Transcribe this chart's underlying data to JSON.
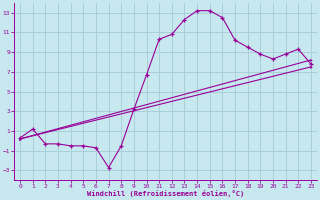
{
  "background_color": "#c6e8ee",
  "grid_color": "#aacfd8",
  "line_color": "#990099",
  "xlim": [
    -0.5,
    23.5
  ],
  "ylim": [
    -4,
    14
  ],
  "xticks": [
    0,
    1,
    2,
    3,
    4,
    5,
    6,
    7,
    8,
    9,
    10,
    11,
    12,
    13,
    14,
    15,
    16,
    17,
    18,
    19,
    20,
    21,
    22,
    23
  ],
  "yticks": [
    -3,
    -1,
    1,
    3,
    5,
    7,
    9,
    11,
    13
  ],
  "xlabel": "Windchill (Refroidissement éolien,°C)",
  "line1_x": [
    0,
    1,
    2,
    3,
    4,
    5,
    6,
    7,
    8,
    9,
    10,
    11,
    12,
    13,
    14,
    15,
    16,
    17,
    18,
    19,
    20,
    21,
    22,
    23
  ],
  "line1_y": [
    0.3,
    1.2,
    -0.3,
    -0.3,
    -0.5,
    -0.5,
    -0.7,
    -2.7,
    -0.5,
    3.2,
    6.7,
    10.3,
    10.8,
    12.3,
    13.2,
    13.2,
    12.5,
    10.2,
    9.5,
    8.8,
    8.3,
    8.8,
    9.3,
    7.8
  ],
  "line2_x": [
    0,
    23
  ],
  "line2_y": [
    0.2,
    8.2
  ],
  "line3_x": [
    0,
    23
  ],
  "line3_y": [
    0.2,
    7.5
  ]
}
